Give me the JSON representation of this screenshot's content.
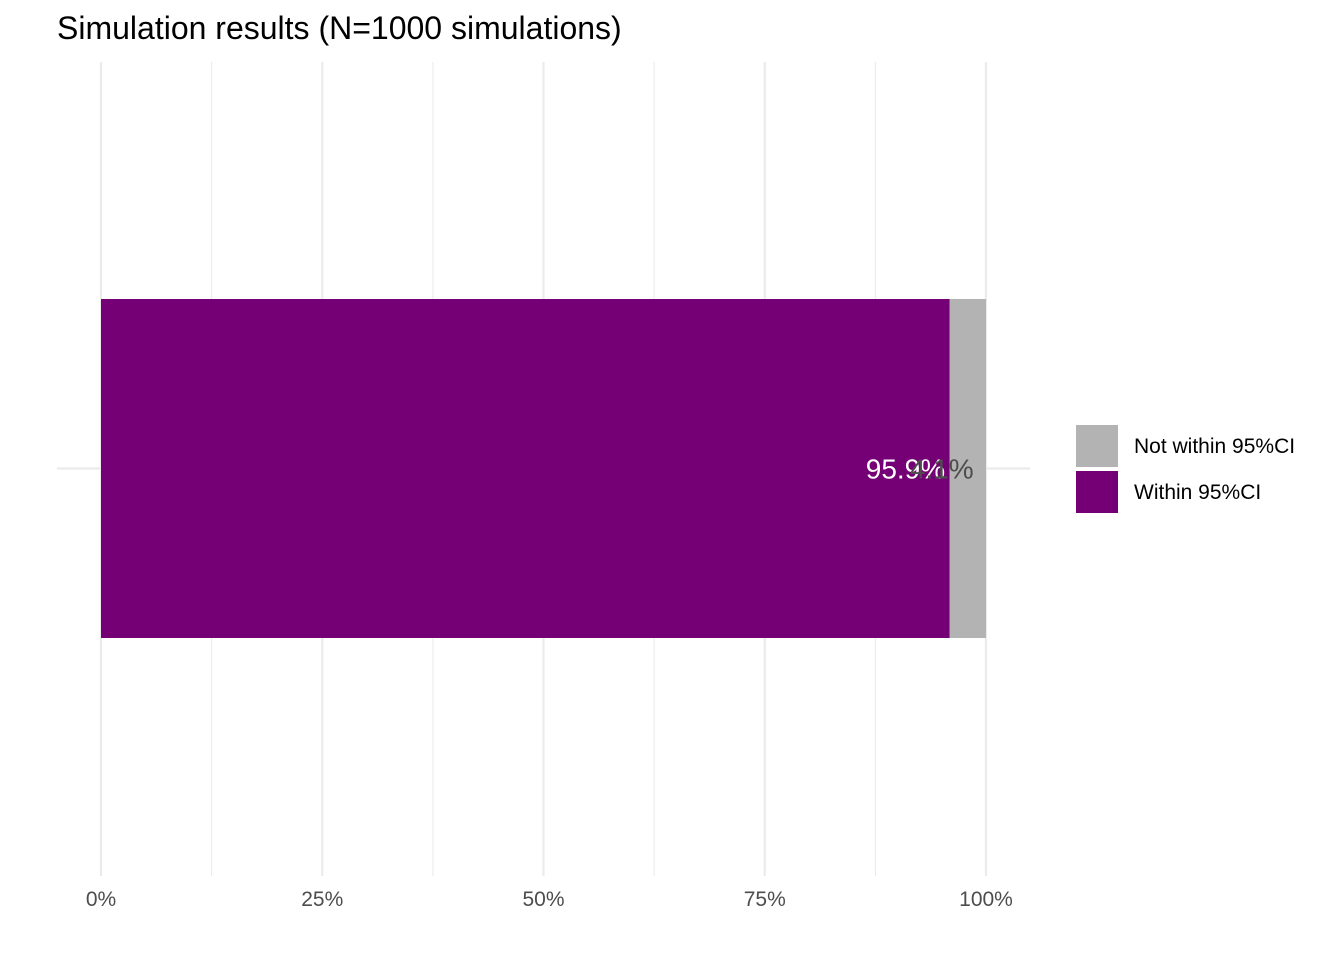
{
  "chart_data": {
    "type": "bar",
    "orientation": "horizontal",
    "stacked": true,
    "title": "Simulation results (N=1000 simulations)",
    "xlabel": "",
    "ylabel": "",
    "xlim": [
      0,
      100
    ],
    "x_ticks": [
      0,
      25,
      50,
      75,
      100
    ],
    "x_tick_labels": [
      "0%",
      "25%",
      "50%",
      "75%",
      "100%"
    ],
    "grid": true,
    "legend_position": "right",
    "series": [
      {
        "name": "Within 95%CI",
        "value": 95.9,
        "label": "95.9%",
        "color": "#750075",
        "label_color": "#ffffff"
      },
      {
        "name": "Not within 95%CI",
        "value": 4.1,
        "label": "4.1%",
        "color": "#b3b3b3",
        "label_color": "#4d4d4d"
      }
    ],
    "legend": [
      {
        "name": "Not within 95%CI",
        "color": "#b3b3b3"
      },
      {
        "name": "Within 95%CI",
        "color": "#750075"
      }
    ]
  }
}
